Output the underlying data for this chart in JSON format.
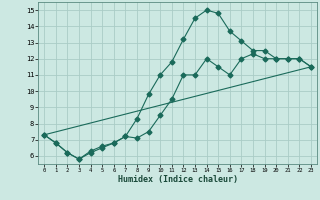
{
  "xlabel": "Humidex (Indice chaleur)",
  "bg_color": "#cce8e2",
  "grid_color": "#aaccc6",
  "line_color": "#1a6a5a",
  "xlim": [
    -0.5,
    23.5
  ],
  "ylim": [
    5.5,
    15.5
  ],
  "yticks": [
    6,
    7,
    8,
    9,
    10,
    11,
    12,
    13,
    14,
    15
  ],
  "xticks": [
    0,
    1,
    2,
    3,
    4,
    5,
    6,
    7,
    8,
    9,
    10,
    11,
    12,
    13,
    14,
    15,
    16,
    17,
    18,
    19,
    20,
    21,
    22,
    23
  ],
  "line1_x": [
    0,
    1,
    2,
    3,
    4,
    5,
    6,
    7,
    8,
    9,
    10,
    11,
    12,
    13,
    14,
    15,
    16,
    17,
    18,
    19,
    20,
    21,
    22,
    23
  ],
  "line1_y": [
    7.3,
    6.8,
    6.2,
    5.8,
    6.2,
    6.5,
    6.8,
    7.2,
    7.1,
    7.5,
    8.5,
    9.5,
    11.0,
    11.0,
    12.0,
    11.5,
    11.0,
    12.0,
    12.3,
    12.0,
    12.0,
    12.0,
    12.0,
    11.5
  ],
  "line2_x": [
    0,
    1,
    2,
    3,
    4,
    5,
    6,
    7,
    8,
    9,
    10,
    11,
    12,
    13,
    14,
    15,
    16,
    17,
    18,
    19,
    20,
    21,
    22,
    23
  ],
  "line2_y": [
    7.3,
    6.8,
    6.2,
    5.8,
    6.3,
    6.6,
    6.8,
    7.2,
    8.3,
    9.8,
    11.0,
    11.8,
    13.2,
    14.5,
    15.0,
    14.8,
    13.7,
    13.1,
    12.5,
    12.5,
    12.0,
    12.0,
    12.0,
    11.5
  ],
  "line3_x": [
    0,
    23
  ],
  "line3_y": [
    7.3,
    11.5
  ]
}
